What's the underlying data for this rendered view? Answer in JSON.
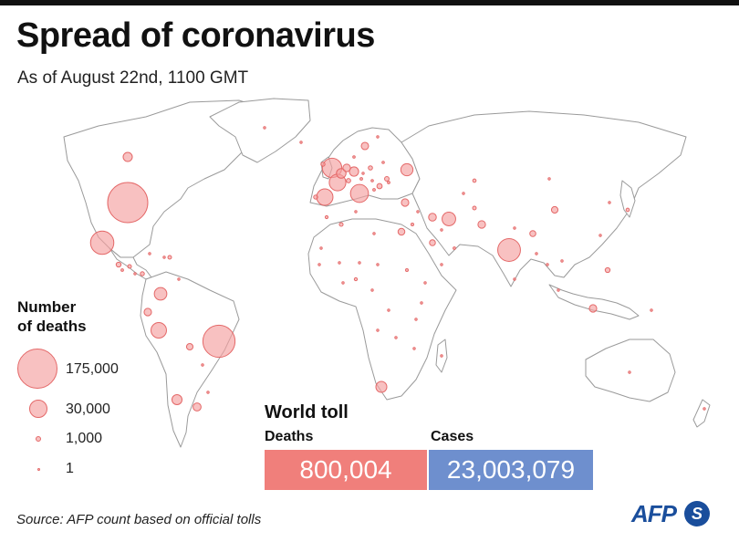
{
  "header": {
    "title": "Spread of coronavirus",
    "subtitle": "As of August 22nd, 1100 GMT"
  },
  "legend": {
    "title_line1": "Number",
    "title_line2": "of deaths",
    "items": [
      {
        "label": "175,000",
        "value": 175000
      },
      {
        "label": "30,000",
        "value": 30000
      },
      {
        "label": "1,000",
        "value": 1000
      },
      {
        "label": "1",
        "value": 1
      }
    ]
  },
  "world_toll": {
    "title": "World toll",
    "deaths_label": "Deaths",
    "cases_label": "Cases",
    "deaths_value": "800,004",
    "cases_value": "23,003,079"
  },
  "colors": {
    "bubble_fill": "#f4a0a0",
    "bubble_stroke": "#e46868",
    "deaths_box": "#f07f7b",
    "cases_box": "#6e8fce",
    "land_stroke": "#9a9a9a",
    "afp_blue": "#1a4e9c"
  },
  "map": {
    "bubbles": [
      {
        "region": "USA",
        "value": 175000
      },
      {
        "region": "Brazil",
        "value": 112000
      },
      {
        "region": "Mexico",
        "value": 59000
      },
      {
        "region": "India",
        "value": 56000
      },
      {
        "region": "UK",
        "value": 41000
      },
      {
        "region": "Italy",
        "value": 35000
      },
      {
        "region": "France",
        "value": 30000
      },
      {
        "region": "Spain",
        "value": 29000
      },
      {
        "region": "Peru",
        "value": 26000
      },
      {
        "region": "Iran",
        "value": 20000
      },
      {
        "region": "Colombia",
        "value": 17000
      },
      {
        "region": "Russia",
        "value": 16000
      },
      {
        "region": "South Africa",
        "value": 13000
      },
      {
        "region": "Chile",
        "value": 11000
      },
      {
        "region": "Belgium",
        "value": 10000
      },
      {
        "region": "Germany",
        "value": 9300
      },
      {
        "region": "Canada",
        "value": 9100
      },
      {
        "region": "Argentina",
        "value": 7000
      },
      {
        "region": "Ecuador",
        "value": 6000
      },
      {
        "region": "Indonesia",
        "value": 6000
      },
      {
        "region": "Netherlands",
        "value": 6200
      },
      {
        "region": "Turkey",
        "value": 6000
      },
      {
        "region": "Sweden",
        "value": 5800
      },
      {
        "region": "Iraq",
        "value": 6500
      },
      {
        "region": "Egypt",
        "value": 5000
      },
      {
        "region": "Pakistan",
        "value": 6200
      },
      {
        "region": "China",
        "value": 4600
      },
      {
        "region": "Bolivia",
        "value": 4500
      },
      {
        "region": "Philippines",
        "value": 2600
      },
      {
        "region": "Saudi Arabia",
        "value": 3800
      },
      {
        "region": "Bangladesh",
        "value": 3900
      },
      {
        "region": "Ukraine",
        "value": 2200
      },
      {
        "region": "Guatemala",
        "value": 2600
      },
      {
        "region": "Honduras",
        "value": 1500
      },
      {
        "region": "Panama",
        "value": 1800
      },
      {
        "region": "Dominican Rep.",
        "value": 1400
      },
      {
        "region": "Poland",
        "value": 1900
      },
      {
        "region": "Romania",
        "value": 3000
      },
      {
        "region": "Portugal",
        "value": 1800
      },
      {
        "region": "Switzerland",
        "value": 2000
      },
      {
        "region": "Ireland",
        "value": 1800
      },
      {
        "region": "Japan",
        "value": 1200
      },
      {
        "region": "Afghanistan",
        "value": 1400
      },
      {
        "region": "Algeria",
        "value": 1500
      },
      {
        "region": "Kazakhstan",
        "value": 1200
      },
      {
        "region": "Nigeria",
        "value": 1000
      },
      {
        "region": "El Salvador",
        "value": 700
      },
      {
        "region": "Israel",
        "value": 800
      },
      {
        "region": "Sudan",
        "value": 800
      },
      {
        "region": "Morocco",
        "value": 900
      },
      {
        "region": "Venezuela",
        "value": 300
      },
      {
        "region": "Australia",
        "value": 500
      },
      {
        "region": "Belarus",
        "value": 600
      },
      {
        "region": "Moldova",
        "value": 700
      },
      {
        "region": "Hungary",
        "value": 600
      },
      {
        "region": "Austria",
        "value": 730
      },
      {
        "region": "Serbia",
        "value": 700
      },
      {
        "region": "Czechia",
        "value": 400
      },
      {
        "region": "Denmark",
        "value": 620
      },
      {
        "region": "Finland",
        "value": 330
      },
      {
        "region": "Kenya",
        "value": 500
      },
      {
        "region": "Ethiopia",
        "value": 500
      },
      {
        "region": "Uzbekistan",
        "value": 300
      },
      {
        "region": "Oman",
        "value": 700
      },
      {
        "region": "Kuwait",
        "value": 500
      },
      {
        "region": "Cuba",
        "value": 88
      },
      {
        "region": "Haiti",
        "value": 200
      },
      {
        "region": "Costa Rica",
        "value": 400
      },
      {
        "region": "Paraguay",
        "value": 160
      },
      {
        "region": "Uruguay",
        "value": 40
      },
      {
        "region": "South Korea",
        "value": 300
      },
      {
        "region": "Malaysia",
        "value": 125
      },
      {
        "region": "Thailand",
        "value": 58
      },
      {
        "region": "Myanmar",
        "value": 6
      },
      {
        "region": "Nepal",
        "value": 100
      },
      {
        "region": "Cameroon",
        "value": 400
      },
      {
        "region": "Ghana",
        "value": 250
      },
      {
        "region": "Senegal",
        "value": 250
      },
      {
        "region": "Madagascar",
        "value": 160
      },
      {
        "region": "Zambia",
        "value": 250
      },
      {
        "region": "Mozambique",
        "value": 20
      },
      {
        "region": "Angola",
        "value": 80
      },
      {
        "region": "DR Congo",
        "value": 250
      },
      {
        "region": "Tanzania",
        "value": 21
      },
      {
        "region": "Mali",
        "value": 120
      },
      {
        "region": "Niger",
        "value": 69
      },
      {
        "region": "Chad",
        "value": 76
      },
      {
        "region": "Libya",
        "value": 200
      },
      {
        "region": "Tunisia",
        "value": 50
      },
      {
        "region": "Mauritania",
        "value": 155
      },
      {
        "region": "Yemen",
        "value": 500
      },
      {
        "region": "Syria",
        "value": 80
      },
      {
        "region": "Mongolia",
        "value": 1
      },
      {
        "region": "Taiwan",
        "value": 7
      },
      {
        "region": "Vietnam",
        "value": 22
      },
      {
        "region": "Sri Lanka",
        "value": 12
      },
      {
        "region": "New Zealand",
        "value": 22
      },
      {
        "region": "Papua New Guinea",
        "value": 3
      },
      {
        "region": "Iceland",
        "value": 10
      },
      {
        "region": "Greenland",
        "value": 1
      }
    ]
  }
}
